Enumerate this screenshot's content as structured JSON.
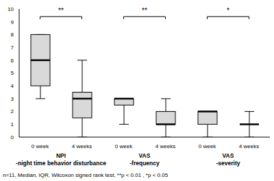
{
  "chart_data": {
    "type": "box",
    "color": "#d9d9d9",
    "ylim": [
      0,
      10
    ],
    "yticks": [
      0,
      1,
      2,
      3,
      4,
      5,
      6,
      7,
      8,
      9,
      10
    ],
    "note": "n=11, Median, IQR, Wilcoxon signed rank test, **p < 0.01 , *p < 0.05",
    "groups": [
      {
        "label": [
          "NPI",
          "-night time behavior disturbance"
        ],
        "significance": "**",
        "categories": [
          "0 week",
          "4 weeks"
        ],
        "min": [
          3,
          0
        ],
        "q1": [
          4,
          1.5
        ],
        "median": [
          6,
          3
        ],
        "q3": [
          8,
          3.5
        ],
        "max": [
          8,
          6
        ]
      },
      {
        "label": [
          "VAS",
          "-frequency"
        ],
        "significance": "**",
        "categories": [
          "0 week",
          "4 weeks"
        ],
        "min": [
          1,
          0
        ],
        "q1": [
          2.5,
          1
        ],
        "median": [
          3,
          1
        ],
        "q3": [
          3,
          2
        ],
        "max": [
          3,
          3
        ]
      },
      {
        "label": [
          "VAS",
          "-severity"
        ],
        "significance": "*",
        "categories": [
          "0 week",
          "4 weeks"
        ],
        "min": [
          0,
          0
        ],
        "q1": [
          1,
          1
        ],
        "median": [
          2,
          1
        ],
        "q3": [
          2,
          1
        ],
        "max": [
          2,
          2
        ]
      }
    ]
  }
}
